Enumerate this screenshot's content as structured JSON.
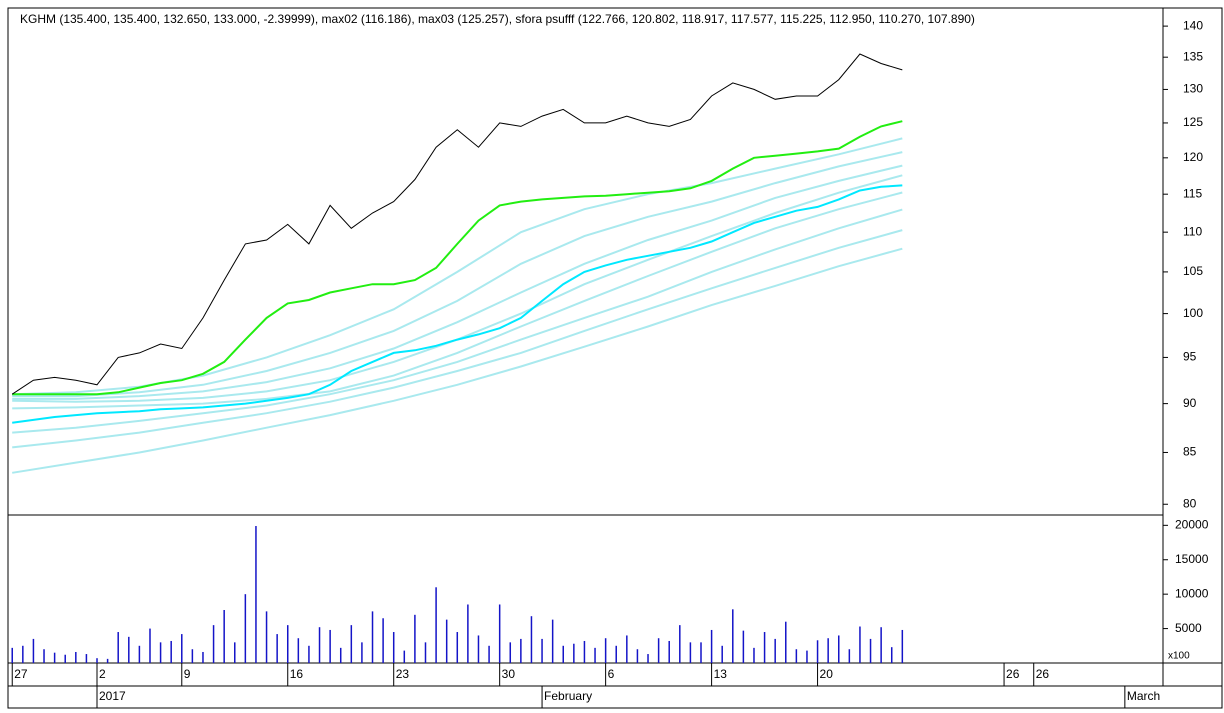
{
  "chart_data": [
    {
      "type": "line",
      "log_scale": true,
      "title": "KGHM (135.400, 135.400, 132.650, 133.000, -2.39999), max02 (116.186), max03 (125.257), sfora psufff (122.766, 120.802, 118.917, 117.577, 115.225, 112.950, 110.270, 107.890)",
      "ylim": [
        79,
        143
      ],
      "yticks": [
        80,
        85,
        90,
        95,
        100,
        105,
        110,
        115,
        120,
        125,
        130,
        135,
        140
      ],
      "series": [
        {
          "color": "#a9e9ee",
          "x": [
            0,
            3,
            6,
            9,
            12,
            15,
            18,
            21,
            24,
            27,
            30,
            33,
            36,
            39,
            42
          ],
          "values": [
            91,
            91.2,
            91.8,
            93,
            95,
            97.5,
            100.5,
            105,
            110,
            113,
            115,
            116.5,
            118.5,
            120.5,
            122.766
          ]
        },
        {
          "color": "#a9e9ee",
          "x": [
            0,
            3,
            6,
            9,
            12,
            15,
            18,
            21,
            24,
            27,
            30,
            33,
            36,
            39,
            42
          ],
          "values": [
            90.8,
            90.8,
            91.2,
            92,
            93.5,
            95.5,
            98,
            101.5,
            106,
            109.5,
            112,
            114,
            116.5,
            118.8,
            120.802
          ]
        },
        {
          "color": "#a9e9ee",
          "x": [
            0,
            3,
            6,
            9,
            12,
            15,
            18,
            21,
            24,
            27,
            30,
            33,
            36,
            39,
            42
          ],
          "values": [
            90.5,
            90.5,
            90.8,
            91.3,
            92.3,
            93.8,
            96,
            99,
            102.5,
            106,
            109,
            111.5,
            114.5,
            116.8,
            118.917
          ]
        },
        {
          "color": "#a9e9ee",
          "x": [
            0,
            3,
            6,
            9,
            12,
            15,
            18,
            21,
            24,
            27,
            30,
            33,
            36,
            39,
            42
          ],
          "values": [
            90.3,
            90.2,
            90.3,
            90.6,
            91.3,
            92.5,
            94.5,
            97,
            100,
            103.5,
            106.5,
            109.5,
            112.5,
            115.2,
            117.577
          ]
        },
        {
          "color": "#a9e9ee",
          "x": [
            0,
            3,
            6,
            9,
            12,
            15,
            18,
            21,
            24,
            27,
            30,
            33,
            36,
            39,
            42
          ],
          "values": [
            89.5,
            89.6,
            89.8,
            90,
            90.5,
            91.3,
            93,
            95.5,
            98.5,
            101.5,
            104.5,
            107.5,
            110.5,
            113,
            115.225
          ]
        },
        {
          "color": "#a9e9ee",
          "x": [
            0,
            3,
            6,
            9,
            12,
            15,
            18,
            21,
            24,
            27,
            30,
            33,
            36,
            39,
            42
          ],
          "values": [
            87,
            87.5,
            88.2,
            89,
            89.8,
            91,
            92.5,
            94.5,
            97,
            99.5,
            102,
            105,
            107.8,
            110.5,
            112.95
          ]
        },
        {
          "color": "#a9e9ee",
          "x": [
            0,
            3,
            6,
            9,
            12,
            15,
            18,
            21,
            24,
            27,
            30,
            33,
            36,
            39,
            42
          ],
          "values": [
            85.5,
            86.2,
            87,
            88,
            89,
            90.2,
            91.7,
            93.5,
            95.5,
            98,
            100.5,
            103,
            105.5,
            108,
            110.27
          ]
        },
        {
          "color": "#a9e9ee",
          "x": [
            0,
            3,
            6,
            9,
            12,
            15,
            18,
            21,
            24,
            27,
            30,
            33,
            36,
            39,
            42
          ],
          "values": [
            83,
            84,
            85,
            86.2,
            87.5,
            88.8,
            90.3,
            92,
            94,
            96.2,
            98.5,
            101,
            103.3,
            105.7,
            107.89
          ]
        },
        {
          "color": "#00e8ff",
          "width": 2,
          "x": [
            0,
            1,
            2,
            3,
            4,
            5,
            6,
            7,
            8,
            9,
            10,
            11,
            12,
            13,
            14,
            15,
            16,
            17,
            18,
            19,
            20,
            21,
            22,
            23,
            24,
            25,
            26,
            27,
            28,
            29,
            30,
            31,
            32,
            33,
            34,
            35,
            36,
            37,
            38,
            39,
            40,
            41,
            42
          ],
          "values": [
            88,
            88.3,
            88.6,
            88.8,
            89,
            89.1,
            89.2,
            89.4,
            89.5,
            89.6,
            89.8,
            90,
            90.3,
            90.6,
            91,
            92,
            93.5,
            94.5,
            95.5,
            95.8,
            96.3,
            97,
            97.6,
            98.3,
            99.5,
            101.5,
            103.5,
            105,
            105.8,
            106.5,
            107,
            107.5,
            108,
            108.8,
            110,
            111.2,
            112,
            112.8,
            113.3,
            114.3,
            115.5,
            116,
            116.186
          ]
        },
        {
          "color": "#22ee11",
          "width": 2,
          "x": [
            0,
            1,
            2,
            3,
            4,
            5,
            6,
            7,
            8,
            9,
            10,
            11,
            12,
            13,
            14,
            15,
            16,
            17,
            18,
            19,
            20,
            21,
            22,
            23,
            24,
            25,
            26,
            27,
            28,
            29,
            30,
            31,
            32,
            33,
            34,
            35,
            36,
            37,
            38,
            39,
            40,
            41,
            42
          ],
          "values": [
            91,
            91,
            91,
            91,
            91,
            91.2,
            91.7,
            92.2,
            92.5,
            93.2,
            94.5,
            97,
            99.5,
            101.2,
            101.6,
            102.5,
            103,
            103.5,
            103.5,
            104,
            105.5,
            108.5,
            111.5,
            113.5,
            114,
            114.3,
            114.5,
            114.7,
            114.8,
            115,
            115.2,
            115.4,
            115.8,
            116.8,
            118.5,
            120,
            120.3,
            120.6,
            120.9,
            121.3,
            123,
            124.5,
            125.257
          ]
        },
        {
          "color": "#000000",
          "width": 1,
          "x": [
            0,
            1,
            2,
            3,
            4,
            5,
            6,
            7,
            8,
            9,
            10,
            11,
            12,
            13,
            14,
            15,
            16,
            17,
            18,
            19,
            20,
            21,
            22,
            23,
            24,
            25,
            26,
            27,
            28,
            29,
            30,
            31,
            32,
            33,
            34,
            35,
            36,
            37,
            38,
            39,
            40,
            41,
            42
          ],
          "values": [
            91,
            92.5,
            92.8,
            92.5,
            92,
            95,
            95.5,
            96.5,
            96,
            99.5,
            104,
            108.5,
            109,
            111,
            108.5,
            113.5,
            110.5,
            112.5,
            114,
            117,
            121.5,
            124,
            121.5,
            125,
            124.5,
            126,
            127,
            125,
            125,
            126,
            125,
            124.5,
            125.5,
            129,
            131,
            130,
            128.5,
            129,
            129,
            131.5,
            135.5,
            134,
            133
          ]
        }
      ]
    },
    {
      "type": "bar",
      "color": "#1414c8",
      "ylim": [
        0,
        21500
      ],
      "yticks": [
        5000,
        10000,
        15000,
        20000
      ],
      "unit_label": "x100",
      "xlim": [
        -0.2,
        54.3
      ],
      "xticks": [
        {
          "value": 0,
          "label": "27"
        },
        {
          "value": 4,
          "label": "2"
        },
        {
          "value": 8,
          "label": "9"
        },
        {
          "value": 13,
          "label": "16"
        },
        {
          "value": 18,
          "label": "23"
        },
        {
          "value": 23,
          "label": "30"
        },
        {
          "value": 28,
          "label": "6"
        },
        {
          "value": 33,
          "label": "13"
        },
        {
          "value": 38,
          "label": "20"
        },
        {
          "value": 46.8,
          "label": "26"
        },
        {
          "value": 48.2,
          "label": "26"
        }
      ],
      "month_ticks": [
        {
          "value": 4,
          "label": "2017"
        },
        {
          "value": 25,
          "label": "February"
        },
        {
          "value": 52.5,
          "label": "March"
        }
      ],
      "x": [
        0,
        0.5,
        1,
        1.5,
        2,
        2.5,
        3,
        3.5,
        4,
        4.5,
        5,
        5.5,
        6,
        6.5,
        7,
        7.5,
        8,
        8.5,
        9,
        9.5,
        10,
        10.5,
        11,
        11.5,
        12,
        12.5,
        13,
        13.5,
        14,
        14.5,
        15,
        15.5,
        16,
        16.5,
        17,
        17.5,
        18,
        18.5,
        19,
        19.5,
        20,
        20.5,
        21,
        21.5,
        22,
        22.5,
        23,
        23.5,
        24,
        24.5,
        25,
        25.5,
        26,
        26.5,
        27,
        27.5,
        28,
        28.5,
        29,
        29.5,
        30,
        30.5,
        31,
        31.5,
        32,
        32.5,
        33,
        33.5,
        34,
        34.5,
        35,
        35.5,
        36,
        36.5,
        37,
        37.5,
        38,
        38.5,
        39,
        39.5,
        40,
        40.5,
        41,
        41.5,
        42
      ],
      "values": [
        2200,
        2500,
        3500,
        2000,
        1500,
        1200,
        1600,
        1300,
        700,
        600,
        4500,
        3800,
        2500,
        5000,
        3000,
        3200,
        4200,
        2000,
        1600,
        5500,
        7700,
        3000,
        10000,
        19900,
        7500,
        4200,
        5500,
        3600,
        2500,
        5200,
        4800,
        2200,
        5500,
        3000,
        7500,
        6500,
        4500,
        1800,
        7000,
        3000,
        11000,
        6300,
        4500,
        8500,
        4000,
        2500,
        8500,
        3000,
        3500,
        6800,
        3500,
        6300,
        2500,
        2800,
        3200,
        2200,
        3600,
        2500,
        4000,
        2000,
        1300,
        3600,
        3200,
        5500,
        3000,
        3000,
        4800,
        2500,
        7800,
        4700,
        2200,
        4500,
        3500,
        6000,
        2000,
        1800,
        3300,
        3600,
        4000,
        2000,
        5300,
        3500,
        5200,
        2300,
        4800
      ]
    }
  ]
}
